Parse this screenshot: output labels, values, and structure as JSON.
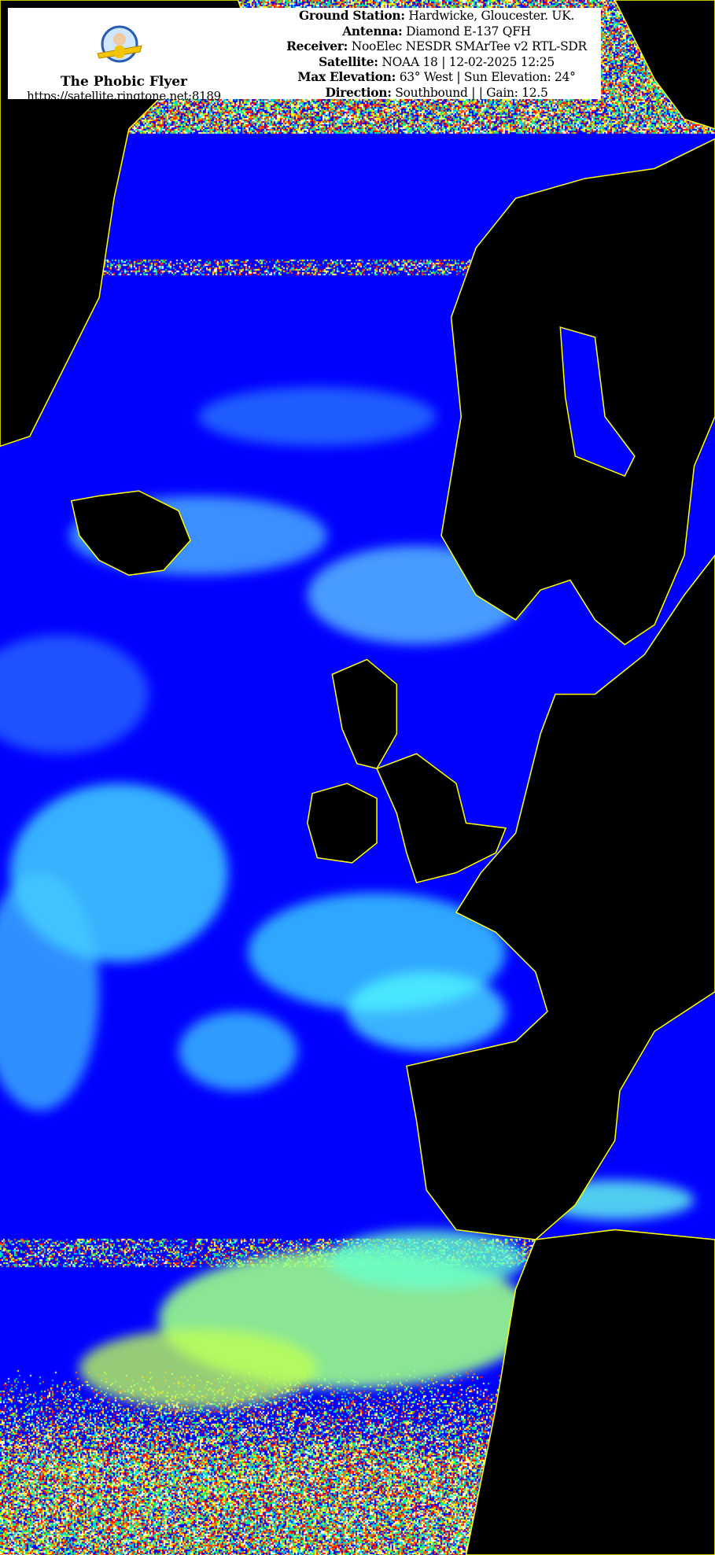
{
  "brand": {
    "title": "The Phobic Flyer",
    "url": "https://satellite.ringtone.net:8189",
    "logo_text": "The Phobic Flyer"
  },
  "info": [
    {
      "label": "Ground Station:",
      "value": "Hardwicke, Gloucester. UK."
    },
    {
      "label": "Antenna:",
      "value": "Diamond E-137 QFH"
    },
    {
      "label": "Receiver:",
      "value": "NooElec NESDR SMArTee v2 RTL-SDR"
    },
    {
      "label": "Satellite:",
      "value": "NOAA 18 | 12-02-2025 12:25"
    },
    {
      "label": "Max Elevation:",
      "value": "63° West | Sun Elevation: 24°"
    },
    {
      "label": "Direction:",
      "value": "Southbound | | Gain: 12.5"
    }
  ],
  "colors": {
    "sea": "#0000ff",
    "land": "#000000",
    "coastline": "#ffff00",
    "cloud": "#33ffff",
    "warm_cloud": "#99ff66",
    "noise_red": "#ff2200"
  }
}
